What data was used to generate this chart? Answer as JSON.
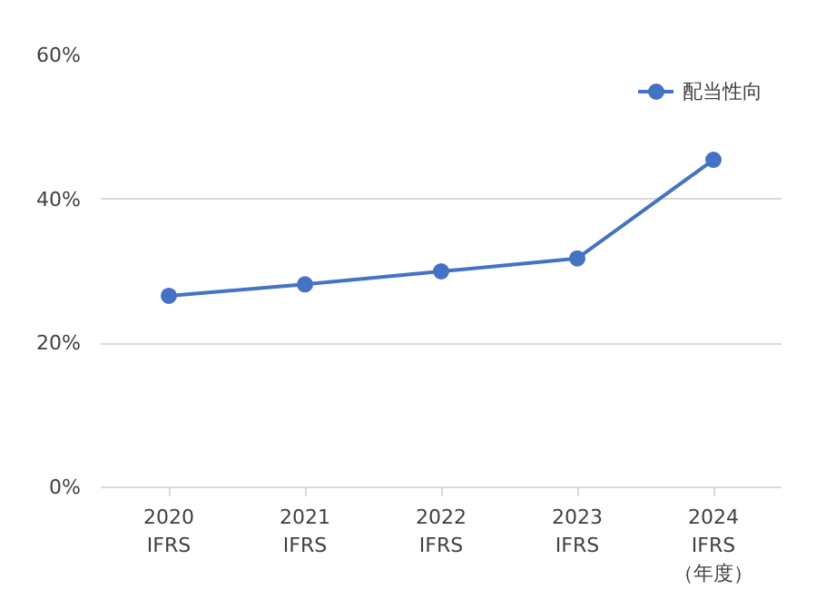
{
  "chart_data": {
    "type": "line",
    "categories": [
      "2020\nIFRS",
      "2021\nIFRS",
      "2022\nIFRS",
      "2023\nIFRS",
      "2024\nIFRS\n（年度）"
    ],
    "series": [
      {
        "name": "配当性向",
        "color": "#4472c4",
        "values": [
          26.6,
          28.2,
          30.0,
          31.8,
          45.5
        ]
      }
    ],
    "ylim": [
      0,
      60
    ],
    "yticks": [
      {
        "value": 0,
        "label": "0%"
      },
      {
        "value": 20,
        "label": "20%"
      },
      {
        "value": 40,
        "label": "40%"
      },
      {
        "value": 60,
        "label": "60%"
      }
    ],
    "grid": "y",
    "legend": "top right",
    "marker": "circle",
    "line_style": "solid"
  }
}
